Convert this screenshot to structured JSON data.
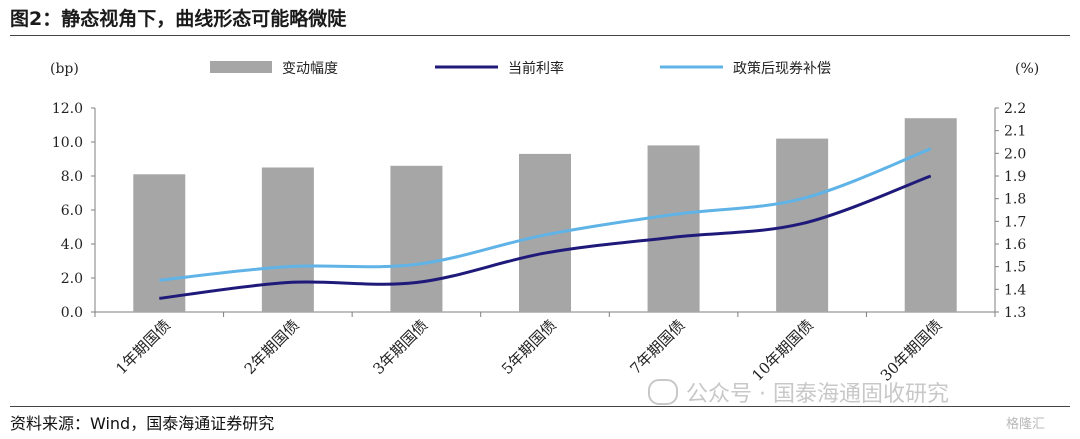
{
  "figure": {
    "title": "图2：静态视角下，曲线形态可能略微陡",
    "source": "资料来源：Wind，国泰海通证券研究",
    "watermark": "公众号 · 国泰海通固收研究",
    "logo": "格隆汇"
  },
  "colors": {
    "bar": "#a6a6a6",
    "current_rate": "#1f1a7a",
    "policy_rate": "#5fb3e6",
    "axis": "#7f7f7f",
    "text": "#222222"
  },
  "chart_data": {
    "type": "bar",
    "categories": [
      "1年期国债",
      "2年期国债",
      "3年期国债",
      "5年期国债",
      "7年期国债",
      "10年期国债",
      "30年期国债"
    ],
    "left_axis": {
      "unit_label": "(bp)",
      "ylim": [
        0,
        12
      ],
      "ticks": [
        "0.0",
        "2.0",
        "4.0",
        "6.0",
        "8.0",
        "10.0",
        "12.0"
      ]
    },
    "right_axis": {
      "unit_label": "(%)",
      "ylim": [
        1.3,
        2.2
      ],
      "ticks": [
        "1.3",
        "1.4",
        "1.5",
        "1.6",
        "1.7",
        "1.8",
        "1.9",
        "2.0",
        "2.1",
        "2.2"
      ]
    },
    "series": [
      {
        "name": "变动幅度",
        "type": "bar",
        "axis": "left",
        "values": [
          8.1,
          8.5,
          8.6,
          9.3,
          9.8,
          10.2,
          11.4
        ]
      },
      {
        "name": "当前利率",
        "type": "line",
        "axis": "right",
        "values": [
          1.36,
          1.43,
          1.43,
          1.56,
          1.63,
          1.69,
          1.9
        ]
      },
      {
        "name": "政策后现券补偿",
        "type": "line",
        "axis": "right",
        "values": [
          1.44,
          1.5,
          1.51,
          1.64,
          1.73,
          1.8,
          2.02
        ]
      }
    ],
    "legend_position": "top",
    "grid": false
  }
}
